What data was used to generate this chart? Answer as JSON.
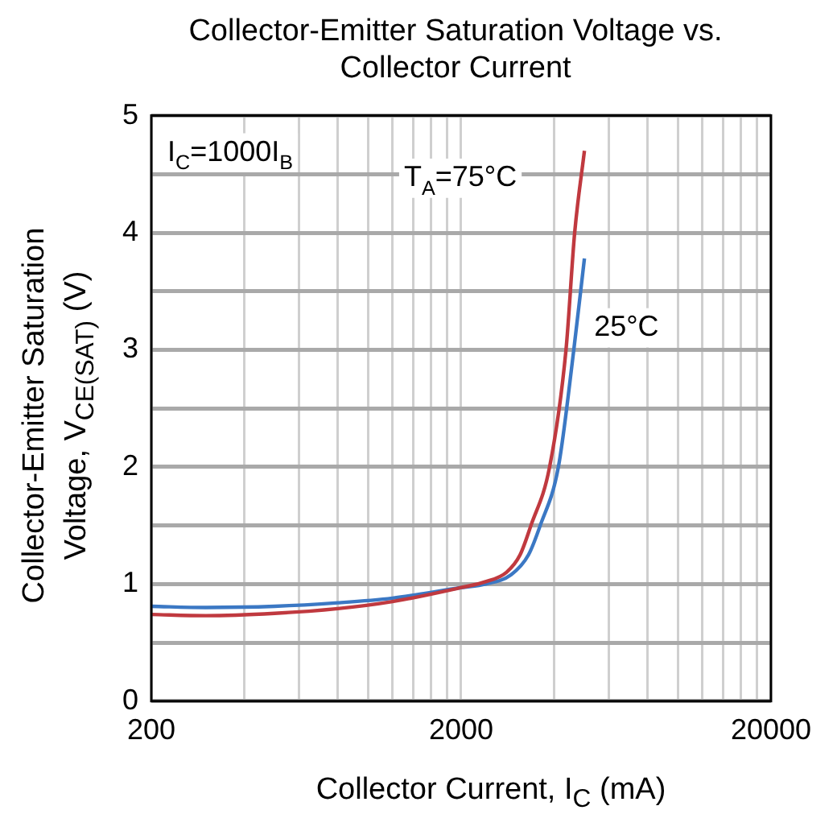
{
  "chart_data": {
    "type": "line",
    "title": "Collector-Emitter Saturation Voltage vs. Collector Current",
    "xlabel": "Collector Current, I$_{C}$ (mA)",
    "ylabel": "Collector-Emitter Saturation Voltage, V$_{CE(SAT)}$ (V)",
    "annotations": [
      "I$_{C}$=1000I$_{B}$"
    ],
    "log": "x",
    "grid": true,
    "legend": false,
    "marker": "none",
    "line_style": "solid",
    "xlim": [
      200,
      20000
    ],
    "xticks": [
      200,
      {
        "value": 400,
        "label": null
      },
      {
        "value": 600,
        "label": null
      },
      {
        "value": 800,
        "label": null
      },
      {
        "value": 1000,
        "label": null
      },
      {
        "value": 1200,
        "label": null
      },
      {
        "value": 1400,
        "label": null
      },
      {
        "value": 1600,
        "label": null
      },
      {
        "value": 1800,
        "label": null
      },
      2000,
      {
        "value": 4000,
        "label": null
      },
      {
        "value": 6000,
        "label": null
      },
      {
        "value": 8000,
        "label": null
      },
      {
        "value": 10000,
        "label": null
      },
      {
        "value": 12000,
        "label": null
      },
      {
        "value": 14000,
        "label": null
      },
      {
        "value": 16000,
        "label": null
      },
      {
        "value": 18000,
        "label": null
      },
      20000
    ],
    "ylim": [
      0,
      5
    ],
    "yticks": [
      0,
      {
        "value": 0.5,
        "label": null
      },
      1,
      {
        "value": 1.5,
        "label": null
      },
      2,
      {
        "value": 2.5,
        "label": null
      },
      3,
      {
        "value": 3.5,
        "label": null
      },
      4,
      {
        "value": 4.5,
        "label": null
      },
      5
    ],
    "series": [
      {
        "name": "T$_{A}$=75°C",
        "color": "#c0393f",
        "x": [
          200,
          300,
          500,
          800,
          1200,
          2000,
          2400,
          2800,
          3100,
          3360,
          3860,
          4360,
          4650,
          5000
        ],
        "values": [
          0.74,
          0.73,
          0.75,
          0.79,
          0.85,
          0.97,
          1.02,
          1.1,
          1.25,
          1.5,
          2.0,
          3.0,
          4.0,
          4.7
        ]
      },
      {
        "name": "25°C",
        "color": "#3b78c4",
        "x": [
          200,
          300,
          500,
          800,
          1200,
          2000,
          2400,
          2900,
          3300,
          3600,
          4120,
          4620,
          5000
        ],
        "values": [
          0.81,
          0.8,
          0.81,
          0.84,
          0.88,
          0.97,
          1.0,
          1.08,
          1.25,
          1.5,
          2.0,
          3.0,
          3.78
        ]
      }
    ]
  }
}
